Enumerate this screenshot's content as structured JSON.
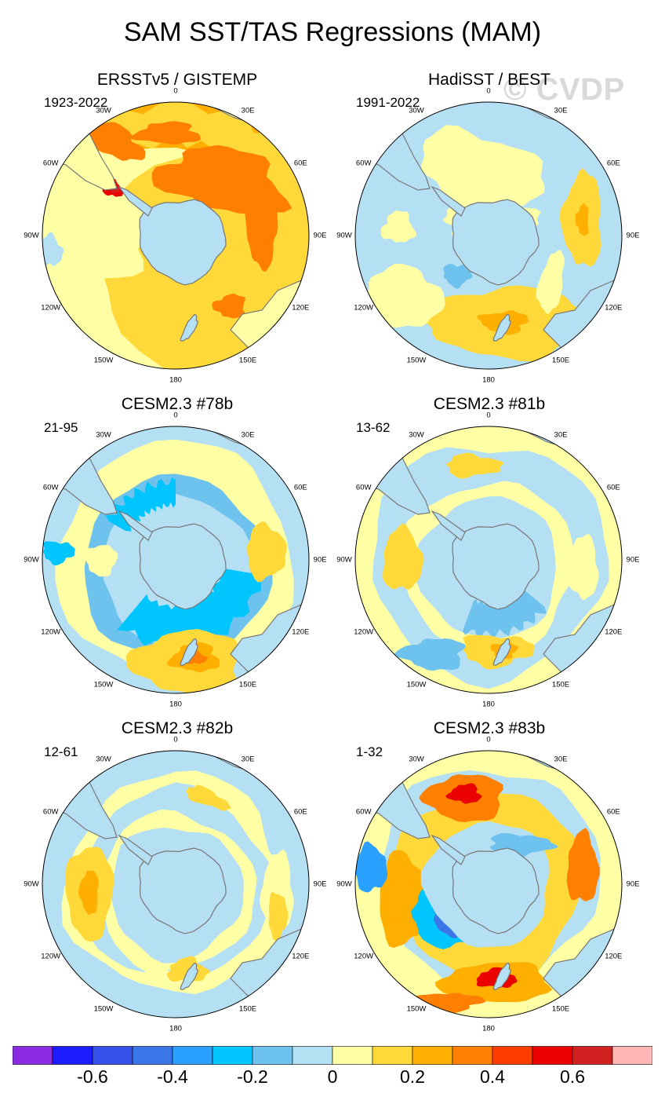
{
  "title": "SAM SST/TAS Regressions (MAM)",
  "watermark": "© CVDP",
  "panels": [
    {
      "title": "ERSSTv5 / GISTEMP",
      "period": "1923-2022"
    },
    {
      "title": "HadiSST / BEST",
      "period": "1991-2022"
    },
    {
      "title": "CESM2.3 #78b",
      "period": "21-95"
    },
    {
      "title": "CESM2.3 #81b",
      "period": "13-62"
    },
    {
      "title": "CESM2.3 #82b",
      "period": "12-61"
    },
    {
      "title": "CESM2.3 #83b",
      "period": "1-32"
    }
  ],
  "longitude_labels": [
    "0",
    "30E",
    "60E",
    "90E",
    "120E",
    "150E",
    "180",
    "150W",
    "120W",
    "90W",
    "60W",
    "30W"
  ],
  "colorbar": {
    "colors": [
      "#8a2be2",
      "#1c1cff",
      "#3350e8",
      "#3a76e8",
      "#2aa0ff",
      "#00c5ff",
      "#6ec2ee",
      "#b5dff3",
      "#ffffa5",
      "#ffd93a",
      "#ffaf00",
      "#ff7f00",
      "#ff3c00",
      "#ea0000",
      "#d12020",
      "#ffb6b6"
    ],
    "labels": [
      "-0.6",
      "-0.4",
      "-0.2",
      "0",
      "0.2",
      "0.4",
      "0.6"
    ]
  },
  "colors": {
    "land": "#b5dff3",
    "coast": "#777777"
  }
}
